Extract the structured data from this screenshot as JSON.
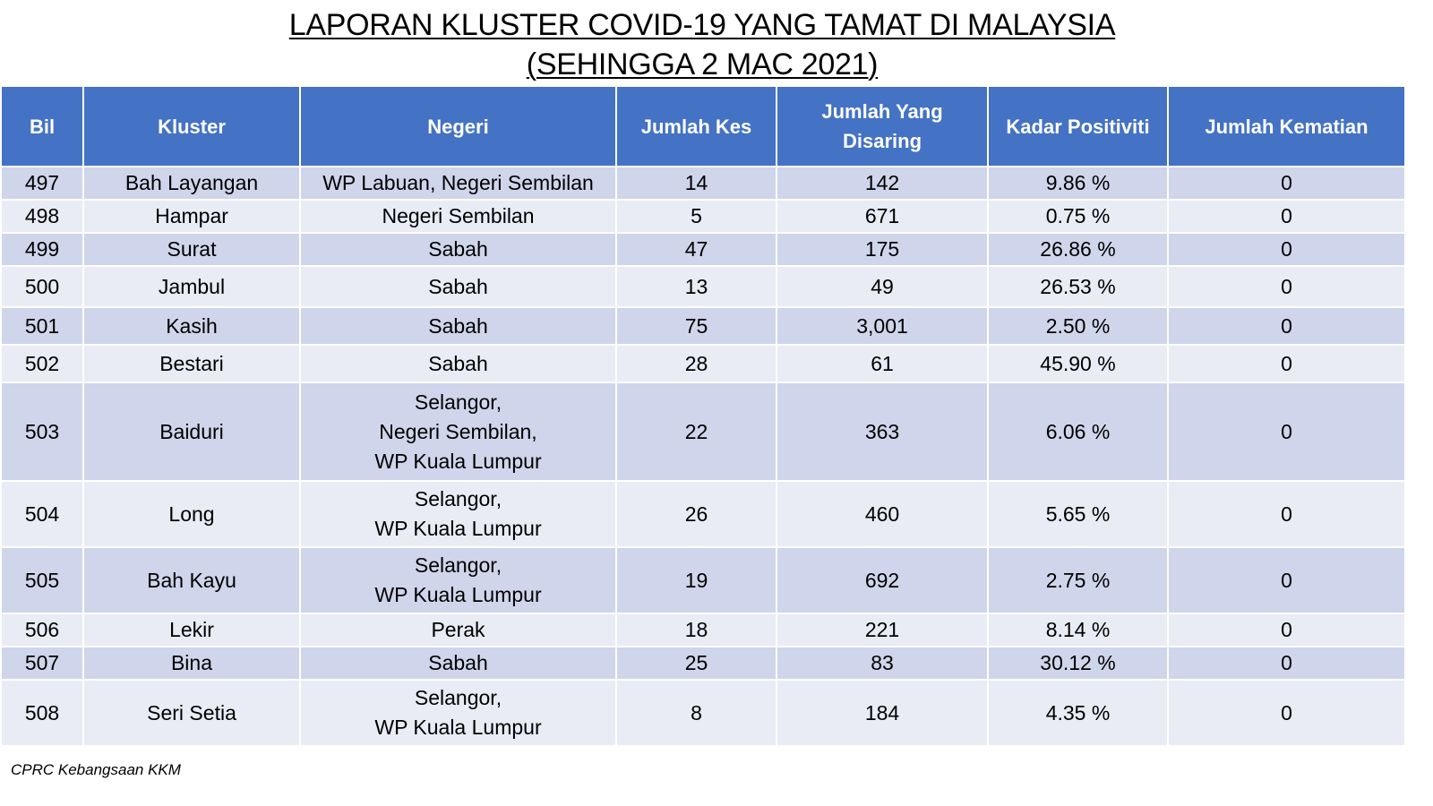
{
  "title": {
    "line1": "LAPORAN KLUSTER COVID-19 YANG TAMAT DI MALAYSIA",
    "line2": "(SEHINGGA 2 MAC 2021)"
  },
  "table": {
    "headers": [
      "Bil",
      "Kluster",
      "Negeri",
      "Jumlah Kes",
      "Jumlah Yang Disaring",
      "Kadar Positiviti",
      "Jumlah Kematian"
    ],
    "rows": [
      {
        "bil": "497",
        "kluster": "Bah Layangan",
        "negeri": [
          "WP Labuan, Negeri Sembilan"
        ],
        "kes": "14",
        "disaring": "142",
        "positiviti": "9.86 %",
        "kematian": "0"
      },
      {
        "bil": "498",
        "kluster": "Hampar",
        "negeri": [
          "Negeri Sembilan"
        ],
        "kes": "5",
        "disaring": "671",
        "positiviti": "0.75 %",
        "kematian": "0"
      },
      {
        "bil": "499",
        "kluster": "Surat",
        "negeri": [
          "Sabah"
        ],
        "kes": "47",
        "disaring": "175",
        "positiviti": "26.86 %",
        "kematian": "0"
      },
      {
        "bil": "500",
        "kluster": "Jambul",
        "negeri": [
          "Sabah"
        ],
        "kes": "13",
        "disaring": "49",
        "positiviti": "26.53 %",
        "kematian": "0"
      },
      {
        "bil": "501",
        "kluster": "Kasih",
        "negeri": [
          "Sabah"
        ],
        "kes": "75",
        "disaring": "3,001",
        "positiviti": "2.50 %",
        "kematian": "0"
      },
      {
        "bil": "502",
        "kluster": "Bestari",
        "negeri": [
          "Sabah"
        ],
        "kes": "28",
        "disaring": "61",
        "positiviti": "45.90 %",
        "kematian": "0"
      },
      {
        "bil": "503",
        "kluster": "Baiduri",
        "negeri": [
          "Selangor,",
          "Negeri Sembilan,",
          "WP Kuala Lumpur"
        ],
        "kes": "22",
        "disaring": "363",
        "positiviti": "6.06 %",
        "kematian": "0"
      },
      {
        "bil": "504",
        "kluster": "Long",
        "negeri": [
          "Selangor,",
          "WP Kuala Lumpur"
        ],
        "kes": "26",
        "disaring": "460",
        "positiviti": "5.65 %",
        "kematian": "0"
      },
      {
        "bil": "505",
        "kluster": "Bah Kayu",
        "negeri": [
          "Selangor,",
          "WP Kuala Lumpur"
        ],
        "kes": "19",
        "disaring": "692",
        "positiviti": "2.75 %",
        "kematian": "0"
      },
      {
        "bil": "506",
        "kluster": "Lekir",
        "negeri": [
          "Perak"
        ],
        "kes": "18",
        "disaring": "221",
        "positiviti": "8.14 %",
        "kematian": "0"
      },
      {
        "bil": "507",
        "kluster": "Bina",
        "negeri": [
          "Sabah"
        ],
        "kes": "25",
        "disaring": "83",
        "positiviti": "30.12 %",
        "kematian": "0"
      },
      {
        "bil": "508",
        "kluster": "Seri Setia",
        "negeri": [
          "Selangor,",
          "WP Kuala Lumpur"
        ],
        "kes": "8",
        "disaring": "184",
        "positiviti": "4.35 %",
        "kematian": "0"
      }
    ]
  },
  "footer": "CPRC Kebangsaan KKM",
  "colors": {
    "header_bg": "#4472c4",
    "row_odd": "#cfd5ea",
    "row_even": "#e9ebf5"
  }
}
